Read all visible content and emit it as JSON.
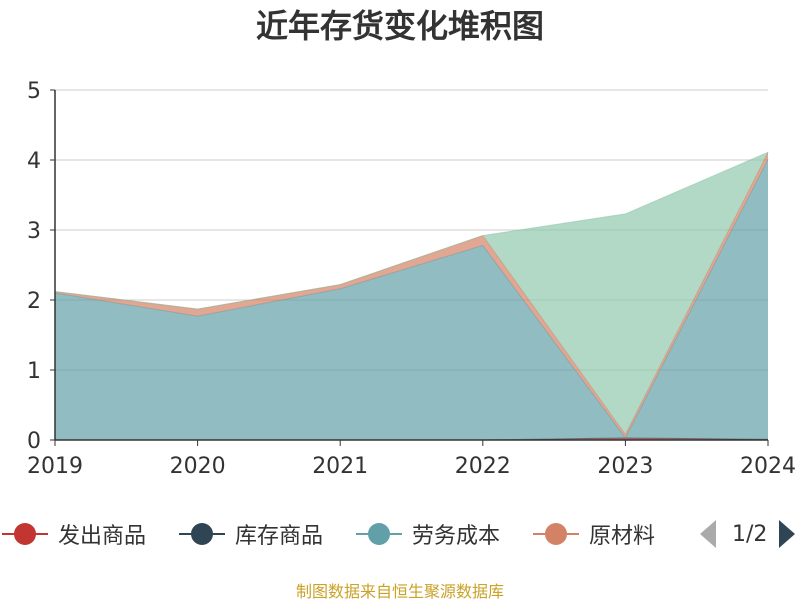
{
  "chart_data": {
    "type": "area",
    "stacked": true,
    "title": "近年存货变化堆积图",
    "x": [
      "2019",
      "2020",
      "2021",
      "2022",
      "2023",
      "2024"
    ],
    "ylim": [
      0,
      5
    ],
    "yticks": [
      "0",
      "1",
      "2",
      "3",
      "4",
      "5"
    ],
    "grid": true,
    "legend_placement": "bottom",
    "series": [
      {
        "name": "发出商品",
        "color": "#c23531",
        "values": [
          0,
          0,
          0,
          0,
          0.03,
          0.01
        ]
      },
      {
        "name": "库存商品",
        "color": "#2f4554",
        "values": [
          0,
          0,
          0,
          0,
          0,
          0
        ]
      },
      {
        "name": "劳务成本",
        "color": "#61a0a8",
        "values": [
          2.1,
          1.77,
          2.16,
          2.78,
          0,
          4.0
        ]
      },
      {
        "name": "原材料",
        "color": "#d48265",
        "values": [
          0.02,
          0.1,
          0.06,
          0.14,
          0.05,
          0.1
        ]
      },
      {
        "name": "",
        "color": "#91c7ae",
        "values": [
          0,
          0,
          0,
          0,
          3.15,
          0
        ]
      }
    ]
  },
  "legend": {
    "items": [
      "发出商品",
      "库存商品",
      "劳务成本",
      "原材料"
    ],
    "page": "1/2"
  },
  "source": "制图数据来自恒生聚源数据库"
}
